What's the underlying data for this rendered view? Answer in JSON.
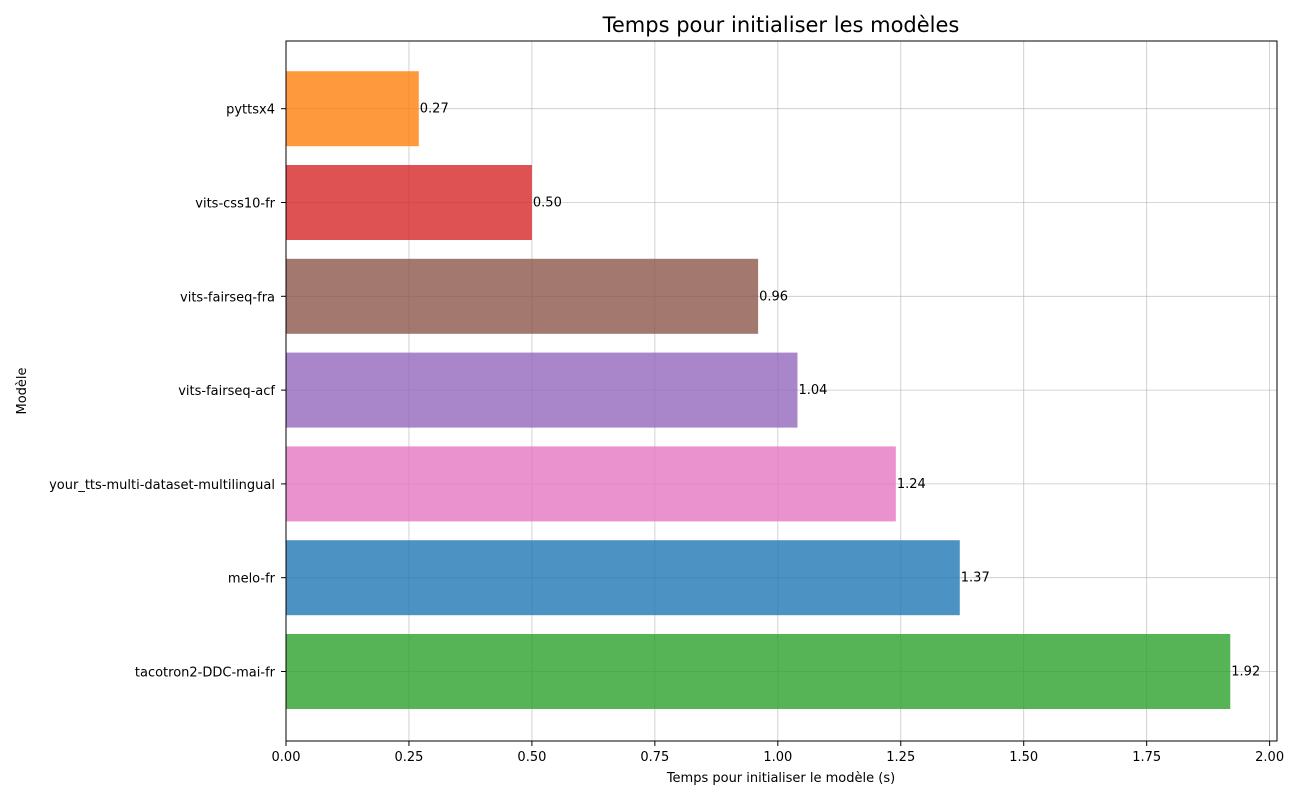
{
  "chart_data": {
    "type": "bar",
    "orientation": "horizontal",
    "title": "Temps pour initialiser les modèles",
    "xlabel": "Temps pour initialiser le modèle (s)",
    "ylabel": "Modèle",
    "xlim": [
      0,
      2.015
    ],
    "xticks": [
      0,
      0.25,
      0.5,
      0.75,
      1.0,
      1.25,
      1.5,
      1.75,
      2.0
    ],
    "xtick_labels": [
      "0.00",
      "0.25",
      "0.50",
      "0.75",
      "1.00",
      "1.25",
      "1.50",
      "1.75",
      "2.00"
    ],
    "grid": true,
    "categories": [
      "tacotron2-DDC-mai-fr",
      "melo-fr",
      "your_tts-multi-dataset-multilingual",
      "vits-fairseq-acf",
      "vits-fairseq-fra",
      "vits-css10-fr",
      "pyttsx4"
    ],
    "values": [
      1.92,
      1.37,
      1.24,
      1.04,
      0.96,
      0.5,
      0.27
    ],
    "value_labels": [
      "1.92",
      "1.37",
      "1.24",
      "1.04",
      "0.96",
      "0.50",
      "0.27"
    ],
    "colors": [
      "#2ca02c",
      "#1f77b4",
      "#e377c2",
      "#9467bd",
      "#8c564b",
      "#d62728",
      "#ff7f0e"
    ],
    "bar_opacity": 0.8
  }
}
